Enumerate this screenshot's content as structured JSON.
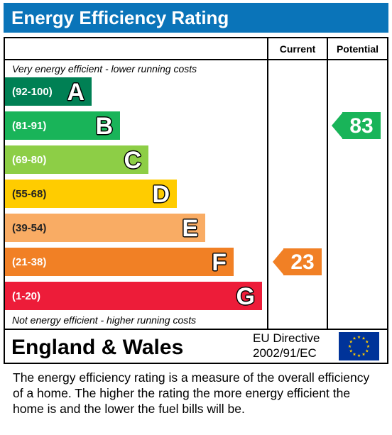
{
  "header": {
    "title": "Energy Efficiency Rating"
  },
  "columns": {
    "current": "Current",
    "potential": "Potential"
  },
  "notes": {
    "top": "Very energy efficient - lower running costs",
    "bottom": "Not energy efficient - higher running costs"
  },
  "chart_data": {
    "type": "bar",
    "categories": [
      "A",
      "B",
      "C",
      "D",
      "E",
      "F",
      "G"
    ],
    "bands": [
      {
        "letter": "A",
        "range": "(92-100)",
        "color": "#008054"
      },
      {
        "letter": "B",
        "range": "(81-91)",
        "color": "#19b459"
      },
      {
        "letter": "C",
        "range": "(69-80)",
        "color": "#8dce46"
      },
      {
        "letter": "D",
        "range": "(55-68)",
        "color": "#ffcc00"
      },
      {
        "letter": "E",
        "range": "(39-54)",
        "color": "#f9ac64"
      },
      {
        "letter": "F",
        "range": "(21-38)",
        "color": "#f18025"
      },
      {
        "letter": "G",
        "range": "(1-20)",
        "color": "#ed1c39"
      }
    ],
    "current": {
      "value": 23,
      "band": "F",
      "color": "#f18025"
    },
    "potential": {
      "value": 83,
      "band": "B",
      "color": "#19b459"
    }
  },
  "footer": {
    "region": "England & Wales",
    "directive_line1": "EU Directive",
    "directive_line2": "2002/91/EC",
    "flag_colors": {
      "field": "#003399",
      "stars": "#ffcc00"
    }
  },
  "caption": "The energy efficiency rating is a measure of the overall efficiency of a home.  The higher the rating the more energy efficient the home is and the lower the fuel bills will be."
}
